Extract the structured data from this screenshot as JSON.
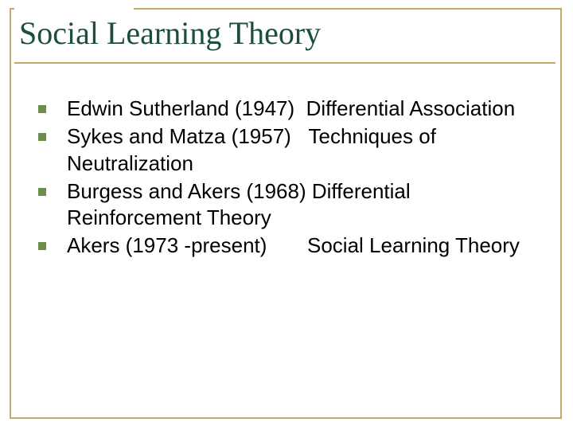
{
  "title": "Social Learning Theory",
  "title_color": "#1b4f3a",
  "title_fontsize": 40,
  "frame_border_color": "#c4a867",
  "title_underline_color": "#c4a867",
  "bullet_marker_color": "#6b8e4e",
  "body_text_color": "#000000",
  "body_fontsize": 26,
  "background_color": "#ffffff",
  "bullets": [
    {
      "text": " Edwin Sutherland (1947)  Differential Association"
    },
    {
      "text": " Sykes and Matza (1957)   Techniques of Neutralization"
    },
    {
      "text": " Burgess and Akers (1968) Differential Reinforcement Theory"
    },
    {
      "text": " Akers (1973 -present)       Social Learning Theory"
    }
  ]
}
